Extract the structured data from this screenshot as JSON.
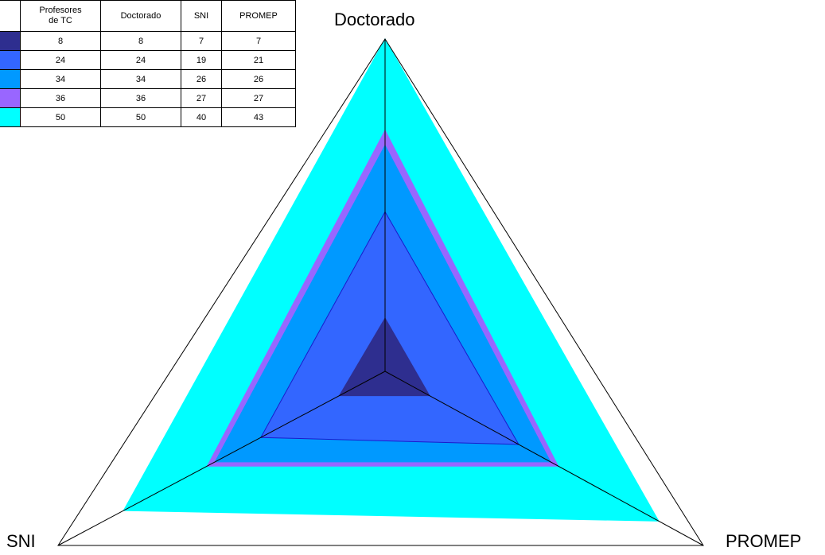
{
  "chart_data": {
    "type": "radar",
    "axes": [
      "Doctorado",
      "SNI",
      "PROMEP"
    ],
    "rmax": 50,
    "table_headers": [
      "Profesores\nde TC",
      "Doctorado",
      "SNI",
      "PROMEP"
    ],
    "series": [
      {
        "color": "#2e2e8f",
        "profesores": "8",
        "doctorado": "8",
        "sni": "7",
        "promep": "7",
        "values": [
          8,
          7,
          7
        ]
      },
      {
        "color": "#3366ff",
        "profesores": "24",
        "doctorado": "24",
        "sni": "19",
        "promep": "21",
        "values": [
          24,
          19,
          21
        ]
      },
      {
        "color": "#0099ff",
        "profesores": "34",
        "doctorado": "34",
        "sni": "26",
        "promep": "26",
        "values": [
          34,
          26,
          26
        ]
      },
      {
        "color": "#9966ff",
        "profesores": "36",
        "doctorado": "36",
        "sni": "27",
        "promep": "27",
        "values": [
          36,
          27,
          27
        ]
      },
      {
        "color": "#00ffff",
        "profesores": "50",
        "doctorado": "50",
        "sni": "40",
        "promep": "43",
        "values": [
          50,
          40,
          43
        ]
      }
    ]
  }
}
